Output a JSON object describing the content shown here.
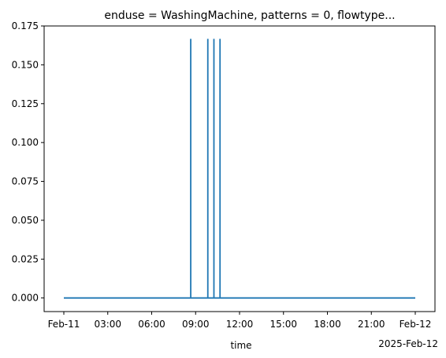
{
  "chart_data": {
    "type": "line",
    "title": "enduse = WashingMachine, patterns = 0, flowtype...",
    "xlabel": "time",
    "x_offset_label": "2025-Feb-12",
    "ylabel": "",
    "xlim": [
      "2025-02-11 00:00",
      "2025-02-12 00:00"
    ],
    "ylim": [
      -0.00875,
      0.175
    ],
    "y_ticks": [
      0.0,
      0.025,
      0.05,
      0.075,
      0.1,
      0.125,
      0.15,
      0.175
    ],
    "y_tick_labels": [
      "0.000",
      "0.025",
      "0.050",
      "0.075",
      "0.100",
      "0.125",
      "0.150",
      "0.175"
    ],
    "x_ticks": [
      "2025-02-11 00:00",
      "2025-02-11 03:00",
      "2025-02-11 06:00",
      "2025-02-11 09:00",
      "2025-02-11 12:00",
      "2025-02-11 15:00",
      "2025-02-11 18:00",
      "2025-02-11 21:00",
      "2025-02-12 00:00"
    ],
    "x_tick_labels": [
      "Feb-11",
      "03:00",
      "06:00",
      "09:00",
      "12:00",
      "15:00",
      "18:00",
      "21:00",
      "Feb-12"
    ],
    "grid": false,
    "line_color": "#1f77b4",
    "spikes": [
      {
        "time": "2025-02-11 08:40",
        "value": 0.1667
      },
      {
        "time": "2025-02-11 09:50",
        "value": 0.1667
      },
      {
        "time": "2025-02-11 10:15",
        "value": 0.1667
      },
      {
        "time": "2025-02-11 10:40",
        "value": 0.1667
      }
    ],
    "baseline_value": 0.0
  }
}
